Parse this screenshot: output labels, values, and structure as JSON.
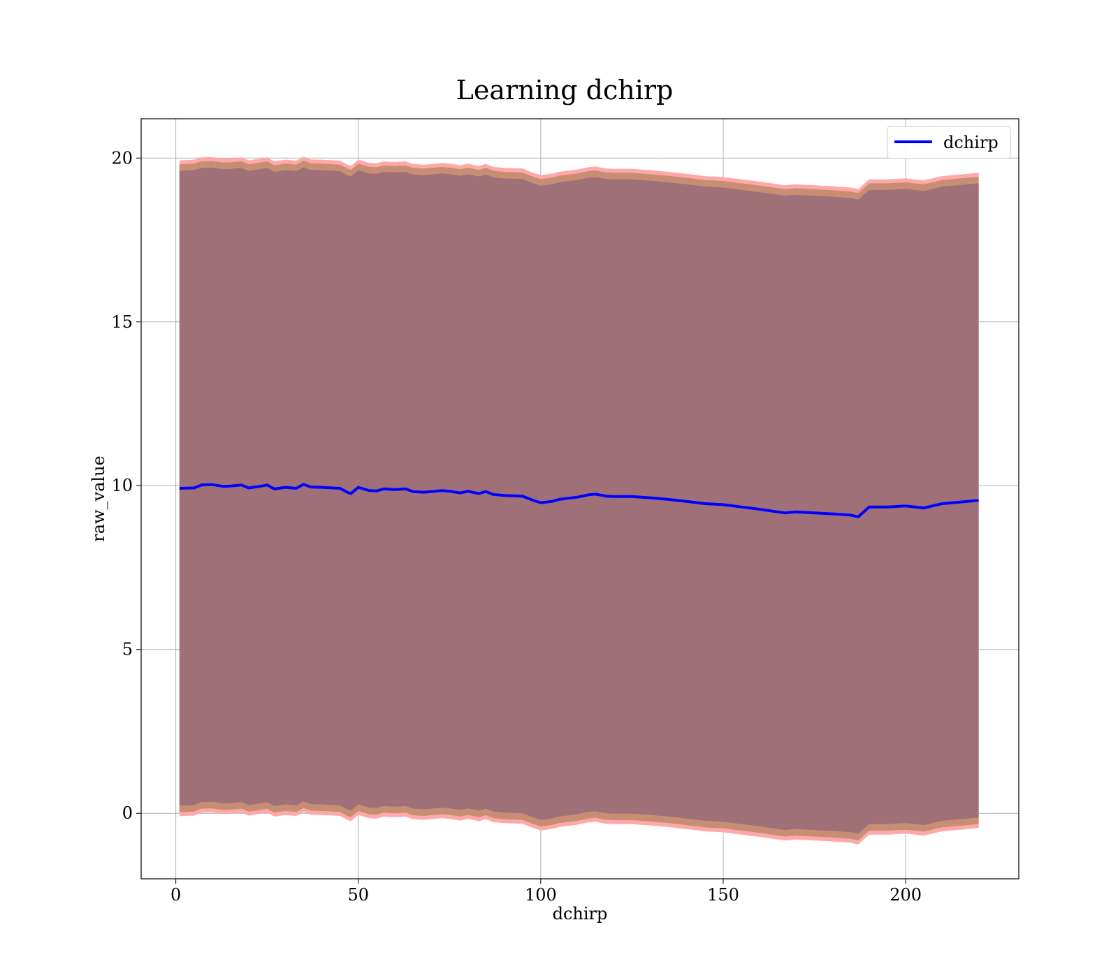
{
  "chart_data": {
    "type": "area",
    "title": "Learning dchirp",
    "xlabel": "dchirp",
    "ylabel": "raw_value",
    "xlim": [
      -9.5,
      231
    ],
    "ylim": [
      -2,
      21.2
    ],
    "xticks": [
      0,
      50,
      100,
      150,
      200
    ],
    "yticks": [
      0,
      5,
      10,
      15,
      20
    ],
    "grid": true,
    "legend_position": "top-right",
    "colors": {
      "mean_line": "#0000ff",
      "band_outer": "#ffa8a8",
      "band_middle": "#c88e74",
      "band_inner": "#a07078"
    },
    "x": [
      1,
      5,
      7,
      10,
      13,
      15,
      18,
      20,
      23,
      25,
      27,
      30,
      33,
      35,
      37,
      40,
      45,
      47,
      48,
      50,
      53,
      55,
      57,
      60,
      63,
      65,
      68,
      70,
      73,
      75,
      78,
      80,
      83,
      85,
      87,
      90,
      95,
      98,
      100,
      103,
      105,
      110,
      113,
      115,
      118,
      120,
      125,
      130,
      135,
      140,
      145,
      150,
      155,
      160,
      165,
      167,
      170,
      175,
      180,
      185,
      187,
      190,
      195,
      200,
      205,
      210,
      215,
      220
    ],
    "series": [
      {
        "name": "dchirp",
        "values": [
          9.92,
          9.93,
          10.02,
          10.03,
          9.98,
          9.99,
          10.02,
          9.93,
          9.98,
          10.02,
          9.9,
          9.95,
          9.92,
          10.04,
          9.96,
          9.95,
          9.92,
          9.8,
          9.76,
          9.95,
          9.85,
          9.84,
          9.9,
          9.88,
          9.9,
          9.82,
          9.8,
          9.82,
          9.85,
          9.83,
          9.78,
          9.83,
          9.76,
          9.82,
          9.73,
          9.7,
          9.68,
          9.55,
          9.48,
          9.52,
          9.58,
          9.65,
          9.72,
          9.74,
          9.68,
          9.67,
          9.67,
          9.63,
          9.58,
          9.52,
          9.45,
          9.42,
          9.35,
          9.28,
          9.2,
          9.17,
          9.2,
          9.17,
          9.14,
          9.1,
          9.05,
          9.35,
          9.35,
          9.38,
          9.32,
          9.45,
          9.5,
          9.55
        ]
      },
      {
        "name": "outer band",
        "upper": [
          19.93,
          19.95,
          20.02,
          20.03,
          19.98,
          19.99,
          20.02,
          19.93,
          19.98,
          20.02,
          19.9,
          19.95,
          19.92,
          20.04,
          19.96,
          19.95,
          19.92,
          19.8,
          19.76,
          19.95,
          19.85,
          19.84,
          19.9,
          19.88,
          19.9,
          19.82,
          19.8,
          19.82,
          19.85,
          19.83,
          19.78,
          19.83,
          19.76,
          19.82,
          19.73,
          19.7,
          19.68,
          19.55,
          19.48,
          19.52,
          19.58,
          19.65,
          19.72,
          19.74,
          19.68,
          19.67,
          19.67,
          19.63,
          19.58,
          19.52,
          19.45,
          19.42,
          19.35,
          19.28,
          19.2,
          19.17,
          19.2,
          19.17,
          19.14,
          19.1,
          19.05,
          19.35,
          19.35,
          19.38,
          19.32,
          19.45,
          19.5,
          19.55
        ],
        "lower": [
          -0.09,
          -0.07,
          0.02,
          0.03,
          -0.02,
          -0.01,
          0.02,
          -0.07,
          -0.02,
          0.02,
          -0.1,
          -0.05,
          -0.08,
          0.04,
          -0.04,
          -0.05,
          -0.08,
          -0.2,
          -0.24,
          -0.05,
          -0.15,
          -0.16,
          -0.1,
          -0.12,
          -0.1,
          -0.18,
          -0.2,
          -0.18,
          -0.15,
          -0.17,
          -0.22,
          -0.17,
          -0.24,
          -0.18,
          -0.27,
          -0.3,
          -0.32,
          -0.45,
          -0.52,
          -0.48,
          -0.42,
          -0.35,
          -0.28,
          -0.26,
          -0.32,
          -0.33,
          -0.33,
          -0.37,
          -0.42,
          -0.48,
          -0.55,
          -0.58,
          -0.65,
          -0.72,
          -0.8,
          -0.83,
          -0.8,
          -0.83,
          -0.86,
          -0.9,
          -0.95,
          -0.65,
          -0.65,
          -0.62,
          -0.68,
          -0.55,
          -0.5,
          -0.45
        ]
      }
    ]
  }
}
